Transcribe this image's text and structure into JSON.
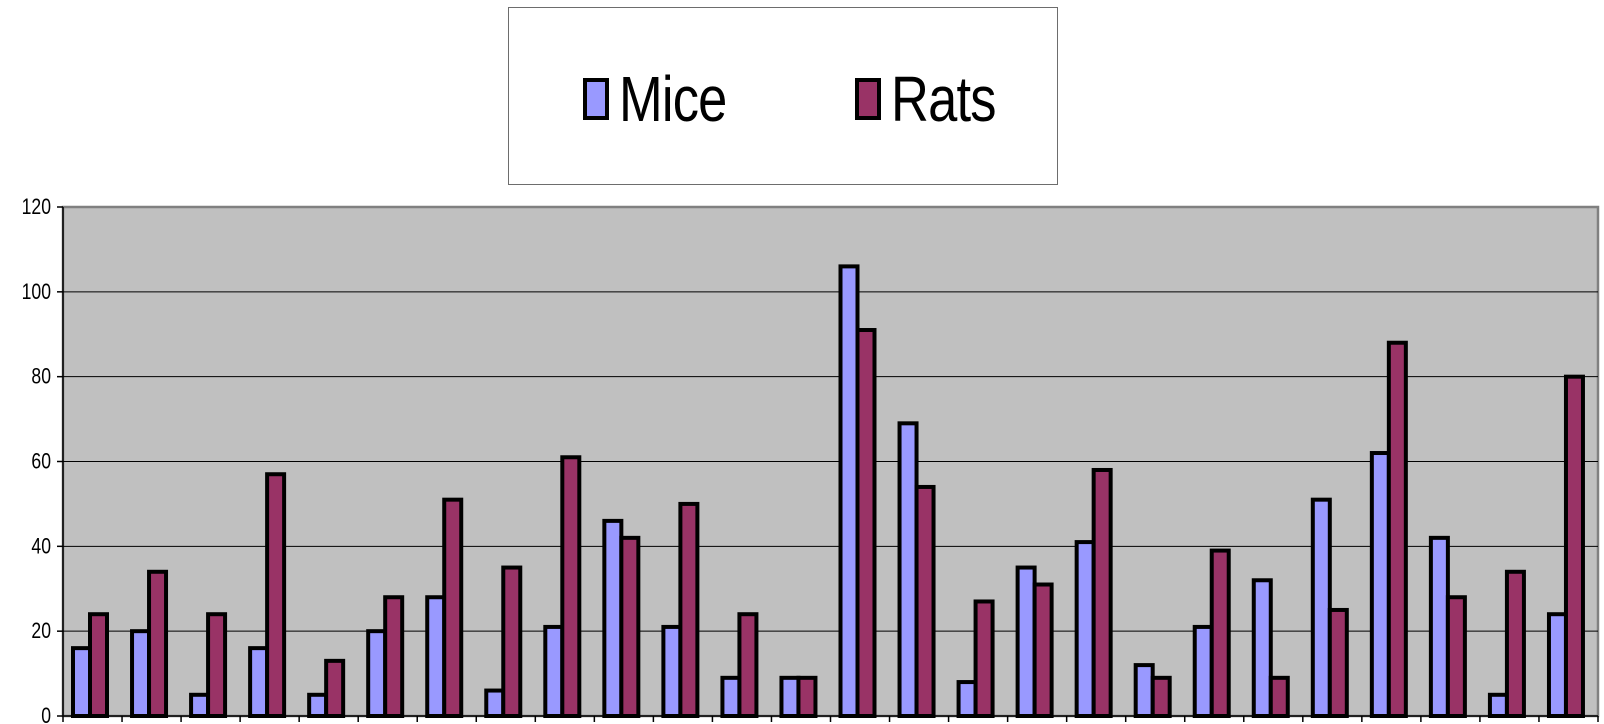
{
  "chart_data": {
    "type": "bar",
    "series": [
      {
        "name": "Mice",
        "color": "#9999ff",
        "values": [
          16,
          20,
          5,
          16,
          5,
          20,
          28,
          6,
          21,
          46,
          21,
          9,
          9,
          106,
          69,
          8,
          35,
          41,
          12,
          21,
          32,
          51,
          62,
          42,
          5,
          24
        ]
      },
      {
        "name": "Rats",
        "color": "#993366",
        "values": [
          24,
          34,
          24,
          57,
          13,
          28,
          51,
          35,
          61,
          42,
          50,
          24,
          9,
          91,
          54,
          27,
          31,
          58,
          9,
          39,
          9,
          25,
          88,
          28,
          34,
          80
        ]
      }
    ],
    "ylim": [
      0,
      120
    ],
    "yticks": [
      "0",
      "20",
      "40",
      "60",
      "80",
      "100",
      "120"
    ],
    "plot_background": "#c0c0c0",
    "gridlines": true,
    "legend_position": "top-center"
  }
}
